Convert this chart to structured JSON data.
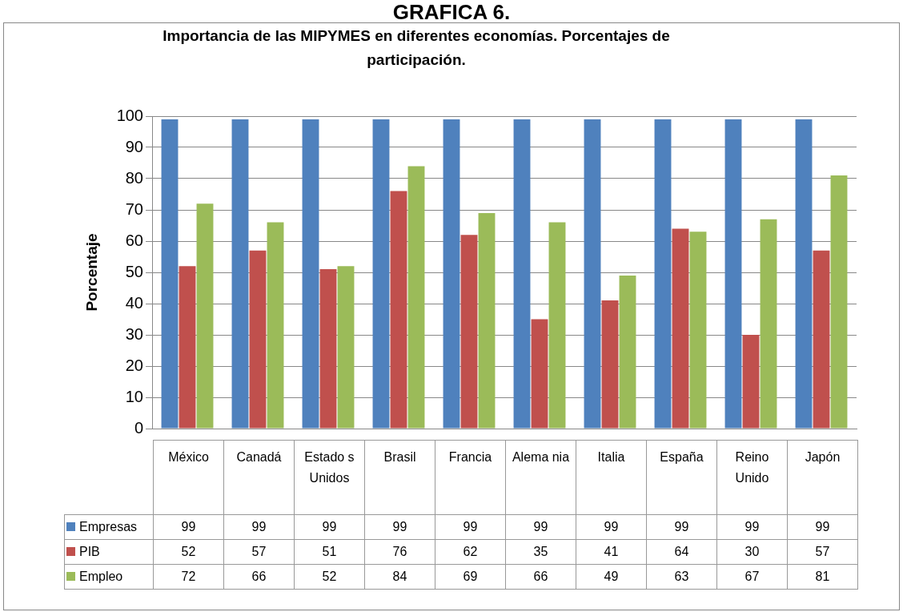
{
  "chart_data": {
    "type": "bar",
    "title": "Importancia de las MIPYMES en diferentes economías. Porcentajes de participación.",
    "ylabel": "Porcentaje",
    "annotations": [
      "GRAFICA 6."
    ],
    "categories": [
      "México",
      "Canadá",
      "Estado s Unidos",
      "Brasil",
      "Francia",
      "Alema nia",
      "Italia",
      "España",
      "Reino Unido",
      "Japón"
    ],
    "series": [
      {
        "name": "Empresas",
        "color": "#4f81bd",
        "values": [
          99,
          99,
          99,
          99,
          99,
          99,
          99,
          99,
          99,
          99
        ]
      },
      {
        "name": "PIB",
        "color": "#c0504d",
        "values": [
          52,
          57,
          51,
          76,
          62,
          35,
          41,
          64,
          30,
          57
        ]
      },
      {
        "name": "Empleo",
        "color": "#9bbb59",
        "values": [
          72,
          66,
          52,
          84,
          69,
          66,
          49,
          63,
          67,
          81
        ]
      }
    ],
    "ylim": [
      0,
      100
    ],
    "yticks": [
      0,
      10,
      20,
      30,
      40,
      50,
      60,
      70,
      80,
      90,
      100
    ],
    "grid": "y",
    "legend": "bottom",
    "data_labels": true
  }
}
